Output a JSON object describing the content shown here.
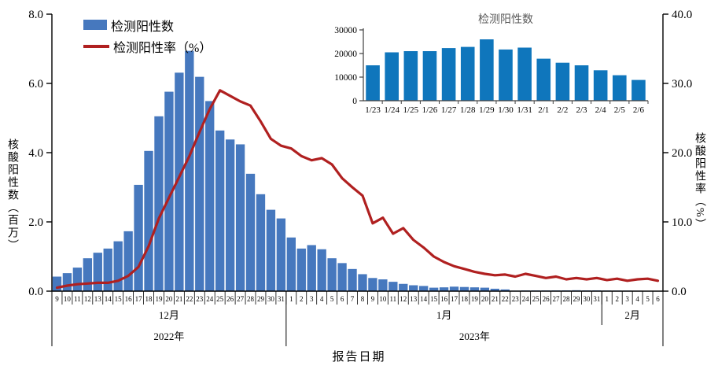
{
  "legend": {
    "bars_label": "检测阳性数",
    "line_label": "检测阳性率（%）"
  },
  "axes": {
    "left_title": "核酸阳性数（百万）",
    "right_title": "核酸阳性率（%）",
    "x_title": "报告日期"
  },
  "colors": {
    "bar": "#4678BE",
    "line": "#B02020",
    "inset_bar": "#0F76BC",
    "axis": "#000000",
    "inset_title": "#595959"
  },
  "chart_data": [
    {
      "type": "combo_bar_line",
      "categories": [
        "9",
        "10",
        "11",
        "12",
        "13",
        "14",
        "15",
        "16",
        "17",
        "18",
        "19",
        "20",
        "21",
        "22",
        "23",
        "24",
        "25",
        "26",
        "27",
        "28",
        "29",
        "30",
        "31",
        "1",
        "2",
        "3",
        "4",
        "5",
        "6",
        "7",
        "8",
        "9",
        "10",
        "11",
        "12",
        "13",
        "14",
        "15",
        "16",
        "17",
        "18",
        "19",
        "20",
        "21",
        "22",
        "23",
        "24",
        "25",
        "26",
        "27",
        "28",
        "29",
        "30",
        "31",
        "1",
        "2",
        "3",
        "4",
        "5",
        "6"
      ],
      "month_groups": [
        {
          "label": "12月",
          "days": 23
        },
        {
          "label": "1月",
          "days": 31
        },
        {
          "label": "2月",
          "days": 6
        }
      ],
      "year_groups": [
        {
          "label": "2022年",
          "days": 23
        },
        {
          "label": "2023年",
          "days": 37
        }
      ],
      "bar_series": {
        "name": "检测阳性数",
        "unit": "百万",
        "values": [
          0.42,
          0.52,
          0.68,
          0.95,
          1.11,
          1.23,
          1.44,
          1.73,
          3.07,
          4.05,
          5.05,
          5.76,
          6.31,
          6.94,
          6.19,
          5.49,
          4.64,
          4.38,
          4.24,
          3.39,
          2.8,
          2.35,
          2.1,
          1.55,
          1.23,
          1.33,
          1.21,
          0.95,
          0.81,
          0.64,
          0.49,
          0.38,
          0.34,
          0.27,
          0.21,
          0.17,
          0.15,
          0.1,
          0.11,
          0.13,
          0.12,
          0.11,
          0.1,
          0.07,
          0.05,
          0.015,
          0.021,
          0.021,
          0.021,
          0.022,
          0.023,
          0.026,
          0.022,
          0.023,
          0.018,
          0.016,
          0.015,
          0.013,
          0.011,
          0.009
        ]
      },
      "line_series": {
        "name": "检测阳性率（%）",
        "unit": "%",
        "values": [
          0.5,
          0.8,
          1,
          1.1,
          1.2,
          1.2,
          1.5,
          2.2,
          3.5,
          6.5,
          10.5,
          13.5,
          16.5,
          19.5,
          23,
          26.3,
          29,
          28.2,
          27.4,
          26.8,
          24.5,
          22,
          21,
          20.6,
          19.5,
          18.9,
          19.2,
          18.3,
          16.3,
          15,
          13.8,
          9.8,
          10.6,
          8.3,
          9.1,
          7.4,
          6.3,
          5,
          4.2,
          3.6,
          3.2,
          2.8,
          2.5,
          2.3,
          2.4,
          2.1,
          2.5,
          2.2,
          1.9,
          2.1,
          1.7,
          1.9,
          1.7,
          1.9,
          1.6,
          1.8,
          1.5,
          1.7,
          1.8,
          1.5
        ]
      },
      "left_axis": {
        "min": 0,
        "max": 8,
        "ticks": [
          "0.0",
          "2.0",
          "4.0",
          "6.0",
          "8.0"
        ]
      },
      "right_axis": {
        "min": 0,
        "max": 40,
        "ticks": [
          "0.0",
          "10.0",
          "20.0",
          "30.0",
          "40.0"
        ]
      },
      "xlabel": "报告日期"
    },
    {
      "type": "bar",
      "title": "检测阳性数",
      "categories": [
        "1/23",
        "1/24",
        "1/25",
        "1/26",
        "1/27",
        "1/28",
        "1/29",
        "1/30",
        "1/31",
        "2/1",
        "2/2",
        "2/3",
        "2/4",
        "2/5",
        "2/6"
      ],
      "values": [
        15000,
        20500,
        21000,
        21000,
        22300,
        22800,
        26000,
        21700,
        22500,
        17800,
        16100,
        15000,
        12900,
        10800,
        8800
      ],
      "ylim": [
        0,
        30000
      ],
      "yticks": [
        "0",
        "10000",
        "20000",
        "30000"
      ],
      "legend_position": "none"
    }
  ]
}
